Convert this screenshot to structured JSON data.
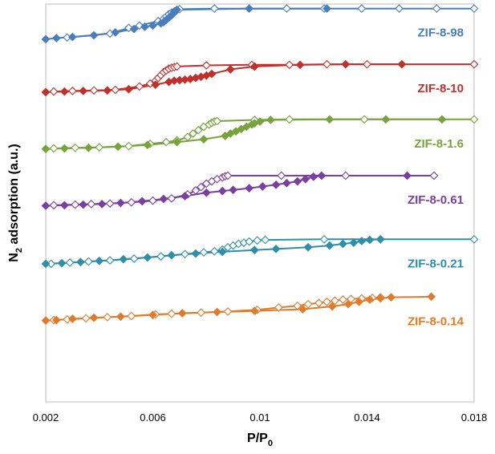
{
  "chart_data": {
    "type": "line",
    "title": "",
    "xlabel": "P/P",
    "xlabel_sub": "0",
    "ylabel": "N",
    "ylabel_sub": "2",
    "ylabel_rest": " adsorption (a.u.)",
    "xlim": [
      0.002,
      0.018
    ],
    "ylim": [
      0,
      7
    ],
    "x_ticks": [
      0.002,
      0.006,
      0.01,
      0.014,
      0.018
    ],
    "x_tick_labels": [
      "0.002",
      "0.006",
      "0.01",
      "0.014",
      "0.018"
    ],
    "y_tick_labels_shown": false,
    "grid": false,
    "legend": "inline labels at right",
    "marker_note": "filled diamonds = adsorption branch, open diamonds = desorption branch",
    "series": [
      {
        "name": "ZIF-8-98",
        "color": "#4a7ebb",
        "adsorption": {
          "x": [
            0.002,
            0.0024,
            0.003,
            0.0038,
            0.0046,
            0.0053,
            0.0057,
            0.006,
            0.0063,
            0.0064,
            0.0065,
            0.0066,
            0.0067,
            0.0068,
            0.0069,
            0.0096,
            0.0125
          ],
          "y": [
            6.38,
            6.4,
            6.42,
            6.45,
            6.5,
            6.56,
            6.6,
            6.62,
            6.66,
            6.68,
            6.72,
            6.76,
            6.8,
            6.85,
            6.9,
            6.92,
            6.92
          ]
        },
        "desorption": {
          "x": [
            0.0028,
            0.0044,
            0.0051,
            0.0055,
            0.0062,
            0.0064,
            0.0065,
            0.0066,
            0.0067,
            0.0068,
            0.0069,
            0.007,
            0.0083,
            0.011,
            0.0124,
            0.0138,
            0.0152,
            0.0166,
            0.018
          ],
          "y": [
            6.41,
            6.48,
            6.58,
            6.62,
            6.7,
            6.74,
            6.78,
            6.82,
            6.85,
            6.87,
            6.89,
            6.91,
            6.92,
            6.92,
            6.92,
            6.92,
            6.92,
            6.92,
            6.92
          ]
        }
      },
      {
        "name": "ZIF-8-10",
        "color": "#c0312b",
        "adsorption": {
          "x": [
            0.002,
            0.0027,
            0.0034,
            0.0043,
            0.0051,
            0.0061,
            0.0066,
            0.0068,
            0.007,
            0.0072,
            0.0074,
            0.0076,
            0.0078,
            0.008,
            0.0082,
            0.0089,
            0.0098,
            0.0115,
            0.0132,
            0.0153
          ],
          "y": [
            5.45,
            5.46,
            5.47,
            5.48,
            5.5,
            5.58,
            5.63,
            5.65,
            5.66,
            5.67,
            5.68,
            5.7,
            5.72,
            5.74,
            5.77,
            5.85,
            5.9,
            5.93,
            5.94,
            5.94
          ]
        },
        "desorption": {
          "x": [
            0.0023,
            0.003,
            0.0038,
            0.0046,
            0.0055,
            0.0059,
            0.0061,
            0.0062,
            0.0063,
            0.0064,
            0.0065,
            0.0066,
            0.0067,
            0.0068,
            0.0069,
            0.008,
            0.0097,
            0.0111,
            0.0125,
            0.014,
            0.018
          ],
          "y": [
            5.46,
            5.47,
            5.48,
            5.49,
            5.55,
            5.6,
            5.65,
            5.7,
            5.75,
            5.8,
            5.83,
            5.86,
            5.88,
            5.89,
            5.9,
            5.92,
            5.93,
            5.93,
            5.94,
            5.94,
            5.94
          ]
        }
      },
      {
        "name": "ZIF-8-1.6",
        "color": "#77a23c",
        "adsorption": {
          "x": [
            0.002,
            0.0027,
            0.0036,
            0.0047,
            0.0058,
            0.0069,
            0.0079,
            0.0087,
            0.0089,
            0.0091,
            0.0093,
            0.0095,
            0.0097,
            0.0098,
            0.01,
            0.0104,
            0.0126,
            0.0147,
            0.0168
          ],
          "y": [
            4.45,
            4.46,
            4.47,
            4.49,
            4.52,
            4.57,
            4.62,
            4.68,
            4.72,
            4.76,
            4.8,
            4.84,
            4.88,
            4.9,
            4.93,
            4.96,
            4.97,
            4.97,
            4.97
          ]
        },
        "desorption": {
          "x": [
            0.0023,
            0.0031,
            0.004,
            0.0051,
            0.0059,
            0.0065,
            0.0069,
            0.0073,
            0.0075,
            0.0077,
            0.0079,
            0.0081,
            0.0082,
            0.0083,
            0.0084,
            0.0098,
            0.0111,
            0.0139,
            0.018
          ],
          "y": [
            4.46,
            4.47,
            4.48,
            4.5,
            4.54,
            4.57,
            4.6,
            4.66,
            4.72,
            4.78,
            4.84,
            4.88,
            4.91,
            4.93,
            4.94,
            4.96,
            4.97,
            4.97,
            4.97
          ]
        }
      },
      {
        "name": "ZIF-8-0.61",
        "color": "#7b3fa0",
        "adsorption": {
          "x": [
            0.002,
            0.0027,
            0.0034,
            0.0041,
            0.0048,
            0.0056,
            0.0064,
            0.0072,
            0.008,
            0.0086,
            0.009,
            0.0096,
            0.0101,
            0.0106,
            0.011,
            0.0114,
            0.0117,
            0.012,
            0.0123,
            0.0155
          ],
          "y": [
            3.45,
            3.46,
            3.47,
            3.48,
            3.5,
            3.53,
            3.57,
            3.62,
            3.68,
            3.71,
            3.73,
            3.76,
            3.79,
            3.82,
            3.85,
            3.88,
            3.92,
            3.96,
            3.98,
            3.98
          ]
        },
        "desorption": {
          "x": [
            0.0023,
            0.0031,
            0.0037,
            0.0044,
            0.0052,
            0.006,
            0.0067,
            0.0073,
            0.0076,
            0.0078,
            0.008,
            0.0082,
            0.0084,
            0.0086,
            0.0087,
            0.0088,
            0.0108,
            0.0132,
            0.0165
          ],
          "y": [
            3.46,
            3.47,
            3.48,
            3.49,
            3.51,
            3.54,
            3.58,
            3.65,
            3.72,
            3.78,
            3.84,
            3.88,
            3.92,
            3.95,
            3.97,
            3.98,
            3.98,
            3.98,
            3.98
          ]
        }
      },
      {
        "name": "ZIF-8-0.21",
        "color": "#2e8fa8",
        "adsorption": {
          "x": [
            0.002,
            0.0026,
            0.0033,
            0.004,
            0.0049,
            0.0058,
            0.0067,
            0.0076,
            0.0086,
            0.0098,
            0.0106,
            0.0118,
            0.0126,
            0.0131,
            0.0135,
            0.0138,
            0.0141,
            0.0145
          ],
          "y": [
            2.43,
            2.44,
            2.46,
            2.48,
            2.51,
            2.54,
            2.58,
            2.61,
            2.64,
            2.67,
            2.69,
            2.72,
            2.75,
            2.78,
            2.8,
            2.83,
            2.85,
            2.86
          ]
        },
        "desorption": {
          "x": [
            0.0022,
            0.0029,
            0.0036,
            0.0044,
            0.0053,
            0.0063,
            0.0072,
            0.0079,
            0.0083,
            0.0086,
            0.0088,
            0.009,
            0.0092,
            0.0094,
            0.0096,
            0.0099,
            0.0102,
            0.0124,
            0.0145,
            0.018
          ],
          "y": [
            2.43,
            2.45,
            2.47,
            2.49,
            2.52,
            2.56,
            2.6,
            2.63,
            2.65,
            2.68,
            2.72,
            2.75,
            2.78,
            2.8,
            2.82,
            2.84,
            2.85,
            2.86,
            2.86,
            2.86
          ]
        }
      },
      {
        "name": "ZIF-8-0.14",
        "color": "#e07b2c",
        "adsorption": {
          "x": [
            0.002,
            0.0024,
            0.003,
            0.0038,
            0.0048,
            0.006,
            0.0071,
            0.0084,
            0.0098,
            0.0116,
            0.0127,
            0.0133,
            0.0137,
            0.0141,
            0.0145,
            0.0149,
            0.0164
          ],
          "y": [
            1.43,
            1.44,
            1.46,
            1.48,
            1.5,
            1.53,
            1.56,
            1.58,
            1.6,
            1.63,
            1.68,
            1.72,
            1.76,
            1.8,
            1.82,
            1.84,
            1.85
          ]
        },
        "desorption": {
          "x": [
            0.0023,
            0.0028,
            0.0035,
            0.0043,
            0.0052,
            0.0061,
            0.0067,
            0.0078,
            0.0088,
            0.0099,
            0.0107,
            0.0114,
            0.0118,
            0.0122,
            0.0125,
            0.0128,
            0.0131,
            0.0134,
            0.0138,
            0.0142,
            0.0145
          ],
          "y": [
            1.44,
            1.45,
            1.47,
            1.49,
            1.51,
            1.54,
            1.55,
            1.57,
            1.59,
            1.62,
            1.66,
            1.69,
            1.72,
            1.74,
            1.76,
            1.78,
            1.8,
            1.81,
            1.82,
            1.83,
            1.84
          ]
        }
      }
    ]
  }
}
